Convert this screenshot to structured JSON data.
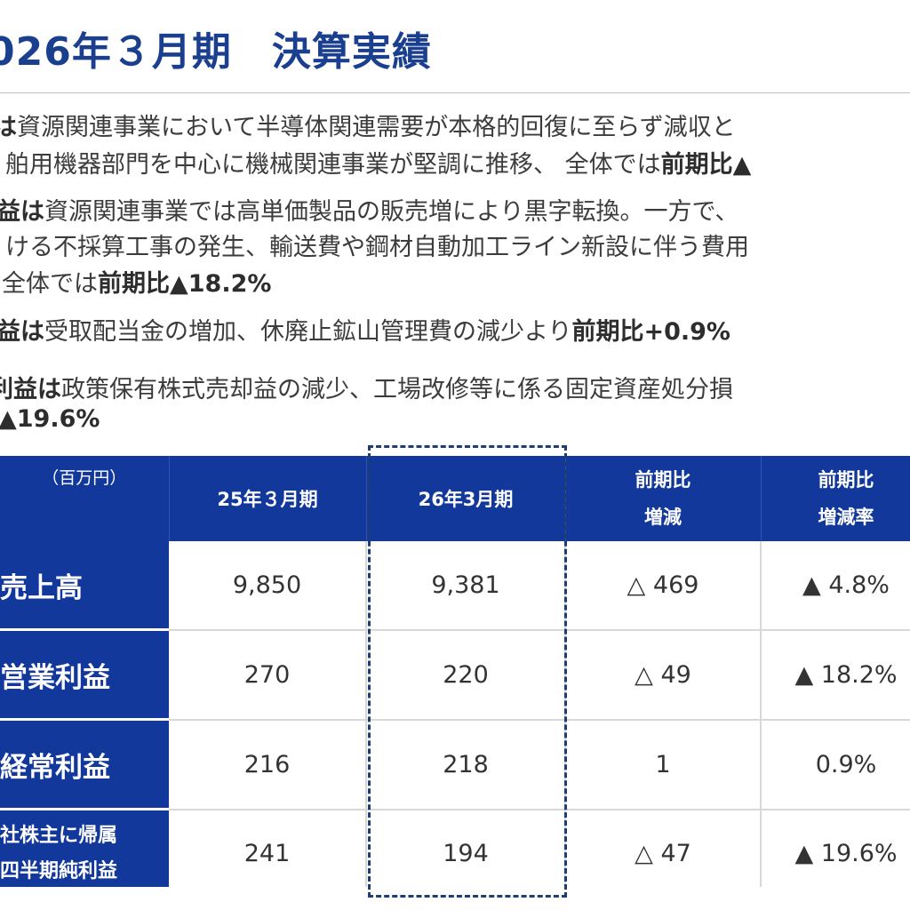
{
  "title": "026年３月期　決算実績",
  "bullets": [
    {
      "bold": "は",
      "text": "資源関連事業において半導体関連需要が本格的回復に至らず減収と",
      "suffix": ""
    },
    {
      "bold": "",
      "text": "舶用機器部門を中心に機械関連事業が堅調に推移、 全体では",
      "suffix": "前期比▲"
    },
    {
      "bold": "益は",
      "text": "資源関連事業では高単価製品の販売増により黒字転換。一方で、",
      "suffix": ""
    },
    {
      "bold": "",
      "text": "ける不採算工事の発生、輸送費や鋼材自動加工ライン新設に伴う費用",
      "suffix": ""
    },
    {
      "bold": "",
      "text": "全体では",
      "suffix": "前期比▲18.2%"
    },
    {
      "bold": "益は",
      "text": "受取配当金の増加、休廃止鉱山管理費の減少より",
      "suffix": "前期比+0.9%"
    },
    {
      "bold": "利益は",
      "text": "政策保有株式売却益の減少、工場改修等に係る固定資産処分損",
      "suffix": ""
    },
    {
      "bold": "",
      "text": "",
      "suffix": "▲19.6%"
    }
  ],
  "table": {
    "unit": "（百万円）",
    "headers": {
      "prev": "25年３月期",
      "curr": "26年3月期",
      "diff_1": "前期比",
      "diff_2": "増減",
      "rate_1": "前期比",
      "rate_2": "増減率"
    },
    "rows": [
      {
        "label": "売上高",
        "label2": "",
        "prev": "9,850",
        "curr": "9,381",
        "diff": "△ 469",
        "rate": "▲ 4.8%"
      },
      {
        "label": "営業利益",
        "label2": "",
        "prev": "270",
        "curr": "220",
        "diff": "△ 49",
        "rate": "▲ 18.2%"
      },
      {
        "label": "経常利益",
        "label2": "",
        "prev": "216",
        "curr": "218",
        "diff": "1",
        "rate": "0.9%"
      },
      {
        "label": "社株主に帰属",
        "label2": "四半期純利益",
        "prev": "241",
        "curr": "194",
        "diff": "△ 47",
        "rate": "▲ 19.6%"
      }
    ]
  },
  "colors": {
    "header_bg": "#12389b",
    "title": "#1b3f8f",
    "highlight_border": "#1d3e73"
  }
}
